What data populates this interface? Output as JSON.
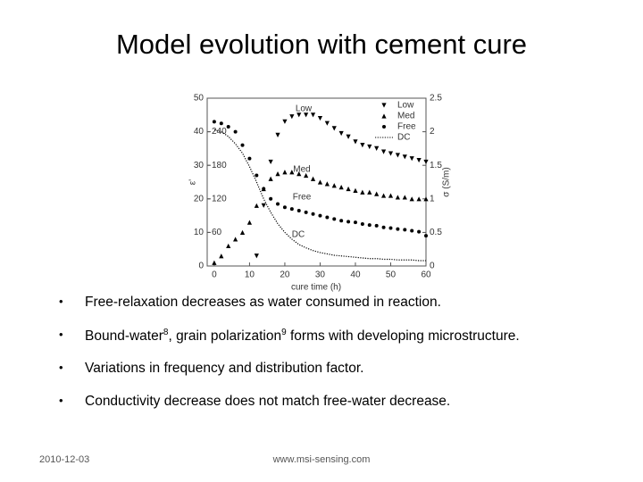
{
  "title": "Model evolution with cement cure",
  "chart_data": {
    "type": "scatter",
    "xlabel": "cure time (h)",
    "ylabel": "ε'",
    "y2label": "σ (S/m)",
    "x": [
      0,
      2,
      4,
      6,
      8,
      10,
      12,
      14,
      16,
      18,
      20,
      22,
      24,
      26,
      28,
      30,
      32,
      34,
      36,
      38,
      40,
      42,
      44,
      46,
      48,
      50,
      52,
      54,
      56,
      58,
      60
    ],
    "xlim": [
      -2,
      60
    ],
    "xticks": [
      0,
      10,
      20,
      30,
      40,
      50,
      60
    ],
    "ylim": [
      0,
      50
    ],
    "yticks": [
      0,
      10,
      20,
      30,
      40,
      50
    ],
    "y2lim": [
      0,
      2.5
    ],
    "y2ticks": [
      0,
      0.5,
      1,
      1.5,
      2,
      2.5
    ],
    "y3lim": [
      0,
      300
    ],
    "y3ticks": [
      60,
      120,
      180,
      240
    ],
    "legend": "upper right",
    "series": [
      {
        "name": "Low",
        "color": "#000000",
        "marker": "triangle-down",
        "values": [
          null,
          null,
          null,
          null,
          null,
          null,
          3,
          18,
          31,
          39,
          43,
          44.5,
          45,
          45,
          45,
          44,
          42.5,
          41,
          39.5,
          38.5,
          37,
          36,
          35.5,
          35,
          34,
          33.5,
          33,
          32.5,
          32,
          31.5,
          31
        ]
      },
      {
        "name": "Med",
        "color": "#000000",
        "marker": "triangle-up",
        "values": [
          1,
          3,
          6,
          8,
          10,
          13,
          18,
          23,
          26,
          27.5,
          28,
          28,
          27.5,
          27,
          26,
          25,
          24.5,
          24,
          23.5,
          23,
          22.5,
          22,
          22,
          21.5,
          21,
          21,
          20.5,
          20.5,
          20,
          20,
          20
        ]
      },
      {
        "name": "Free",
        "color": "#000000",
        "marker": "circle",
        "values": [
          43,
          42.5,
          41.5,
          40,
          36,
          32,
          27,
          23,
          20,
          18.5,
          17.5,
          17,
          16.5,
          16,
          15.5,
          15,
          14.5,
          14,
          13.5,
          13.2,
          13,
          12.5,
          12.2,
          12,
          11.5,
          11.3,
          11,
          10.8,
          10.5,
          10.2,
          9
        ]
      },
      {
        "name": "DC",
        "color": "#000000",
        "marker": "dotted-line",
        "axis": "y2",
        "values": [
          2.03,
          2.0,
          1.93,
          1.82,
          1.68,
          1.48,
          1.25,
          1.0,
          0.8,
          0.63,
          0.5,
          0.4,
          0.32,
          0.27,
          0.23,
          0.2,
          0.18,
          0.16,
          0.15,
          0.14,
          0.13,
          0.12,
          0.11,
          0.11,
          0.1,
          0.1,
          0.09,
          0.09,
          0.09,
          0.08,
          0.08
        ]
      }
    ]
  },
  "bullets": [
    [
      {
        "text": "Free-relaxation decreases as water consumed in reaction."
      }
    ],
    [
      {
        "text": "Bound-water"
      },
      {
        "text": "8",
        "sup": true
      },
      {
        "text": ", grain polarization"
      },
      {
        "text": "9",
        "sup": true
      },
      {
        "text": " forms with developing microstructure."
      }
    ],
    [
      {
        "text": "Variations in frequency and distribution factor."
      }
    ],
    [
      {
        "text": "Conductivity decrease does not match free-water decrease."
      }
    ]
  ],
  "footer": {
    "date": "2010-12-03",
    "url": "www.msi-sensing.com"
  }
}
